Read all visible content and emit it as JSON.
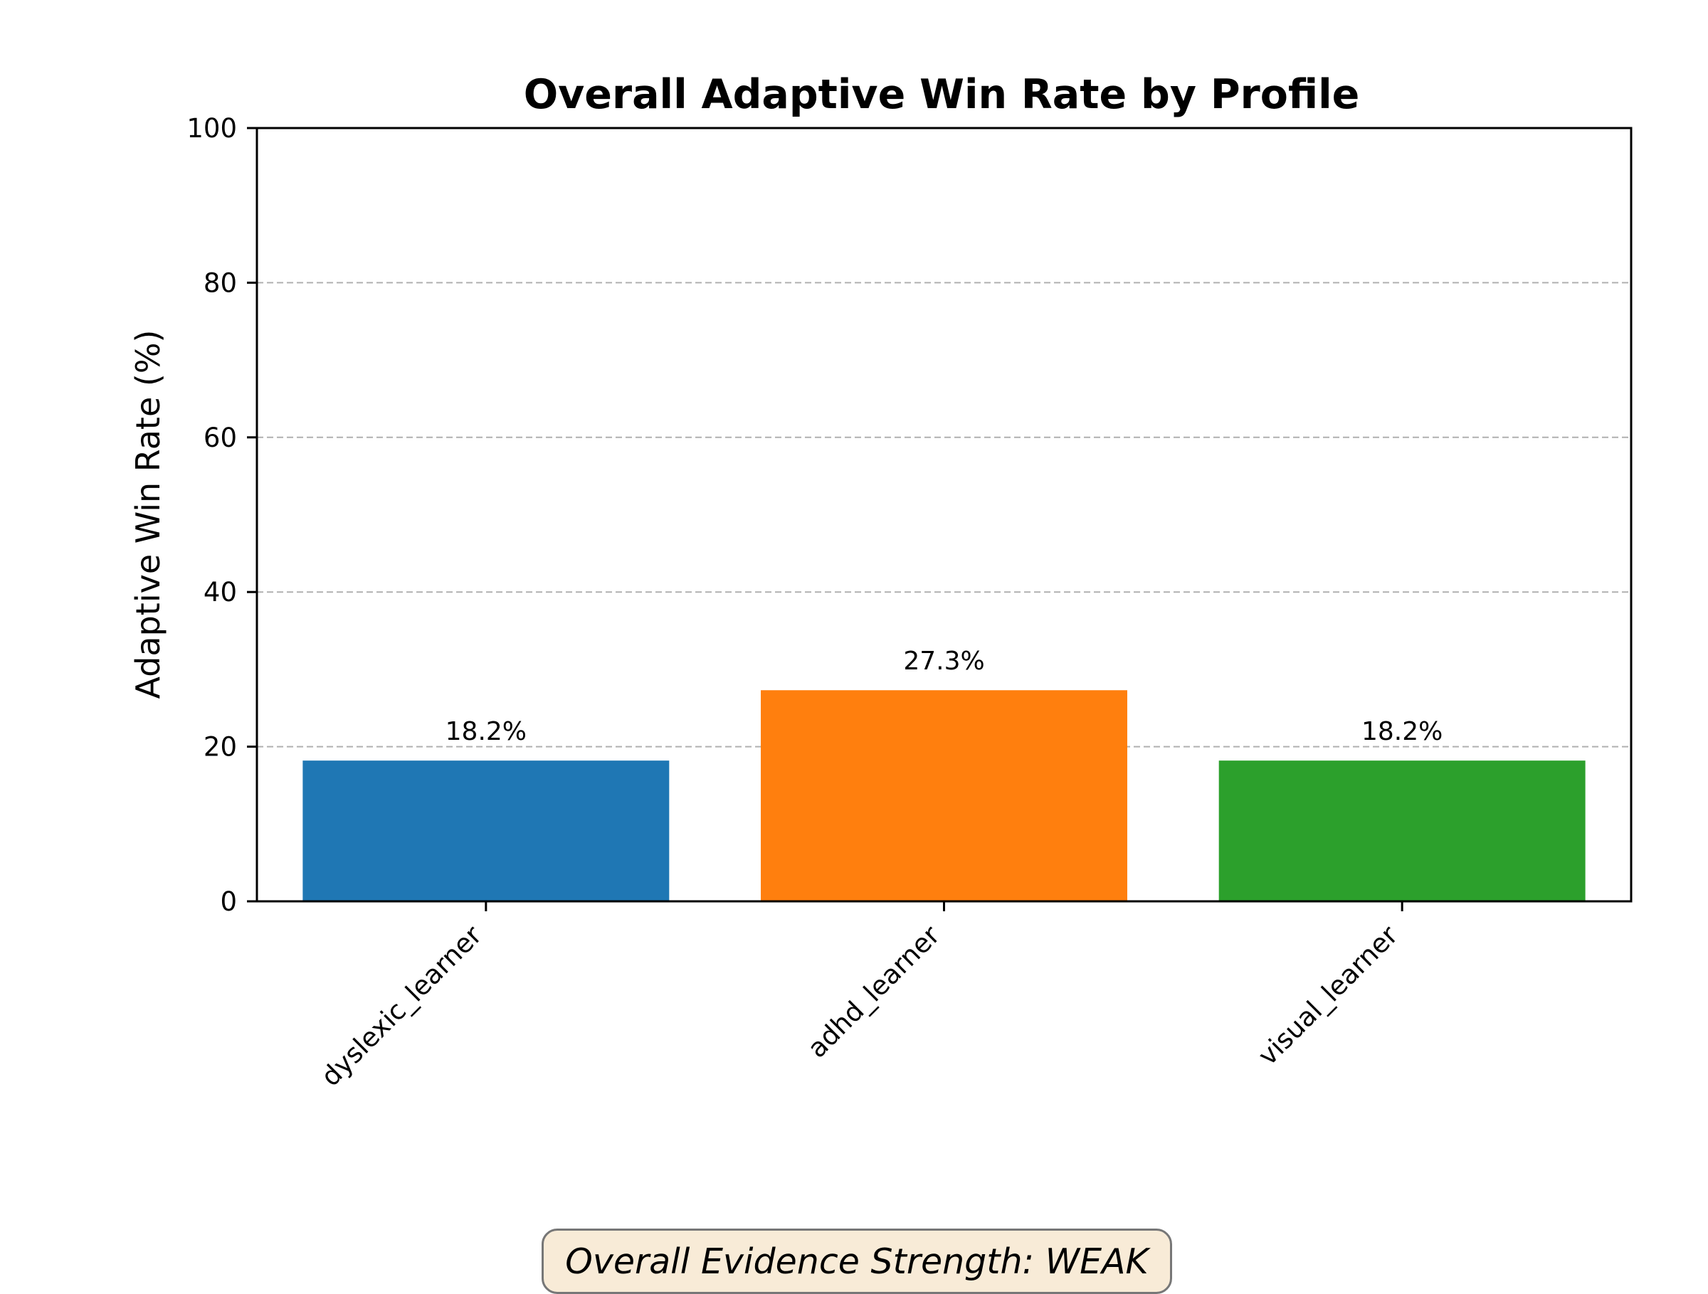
{
  "chart_data": {
    "type": "bar",
    "title": "Overall Adaptive Win Rate by Profile",
    "xlabel": "",
    "ylabel": "Adaptive Win Rate (%)",
    "ylim": [
      0,
      100
    ],
    "yticks": [
      0,
      20,
      40,
      60,
      80,
      100
    ],
    "categories": [
      "dyslexic_learner",
      "adhd_learner",
      "visual_learner"
    ],
    "values": [
      18.2,
      27.3,
      18.2
    ],
    "value_labels": [
      "18.2%",
      "27.3%",
      "18.2%"
    ],
    "colors": [
      "#1f77b4",
      "#ff7f0e",
      "#2ca02c"
    ],
    "grid": "y-dashed",
    "legend": "none"
  },
  "annotation": {
    "text": "Overall Evidence Strength: WEAK"
  }
}
